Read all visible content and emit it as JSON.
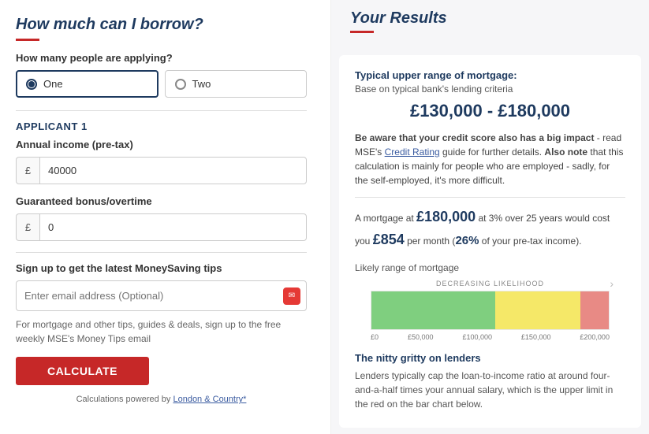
{
  "form": {
    "title": "How much can I borrow?",
    "applying_label": "How many people are applying?",
    "options": {
      "one": "One",
      "two": "Two"
    },
    "applicant_label": "APPLICANT 1",
    "income_label": "Annual income (pre-tax)",
    "income_value": "40000",
    "bonus_label": "Guaranteed bonus/overtime",
    "bonus_value": "0",
    "currency": "£",
    "signup_label": "Sign up to get the latest MoneySaving tips",
    "email_placeholder": "Enter email address (Optional)",
    "signup_help": "For mortgage and other tips, guides & deals, sign up to the free weekly MSE's Money Tips email",
    "calc_button": "CALCULATE",
    "powered_prefix": "Calculations powered by ",
    "powered_link": "London & Country*"
  },
  "results": {
    "title": "Your Results",
    "range_label": "Typical upper range of mortgage:",
    "range_sub": "Base on typical bank's lending criteria",
    "range_value": "£130,000 - £180,000",
    "warn_b1": "Be aware that your credit score also has a big impact",
    "warn_t1": " - read MSE's ",
    "warn_link": "Credit Rating",
    "warn_t2": " guide for further details. ",
    "warn_b2": "Also note",
    "warn_t3": " that this calculation is mainly for people who are employed - sadly, for the self-employed, it's more difficult.",
    "cost_p1": "A mortgage at ",
    "cost_amount": "£180,000",
    "cost_p2": " at 3% over 25 years would cost you ",
    "cost_monthly": "£854",
    "cost_p3": " per month (",
    "cost_pct": "26%",
    "cost_p4": " of your pre-tax income).",
    "chart_label": "Likely range of mortgage",
    "chart_top": "DECREASING LIKELIHOOD",
    "chart": {
      "segments": [
        {
          "class": "chart-seg-green",
          "width": 52
        },
        {
          "class": "chart-seg-yellow",
          "width": 36
        },
        {
          "class": "chart-seg-red",
          "width": 12
        }
      ],
      "axis": [
        "£0",
        "£50,000",
        "£100,000",
        "£150,000",
        "£200,000"
      ]
    },
    "gritty_title": "The nitty gritty on lenders",
    "gritty_text": "Lenders typically cap the loan-to-income ratio at around four-and-a-half times your annual salary, which is the upper limit in the red on the bar chart below."
  }
}
